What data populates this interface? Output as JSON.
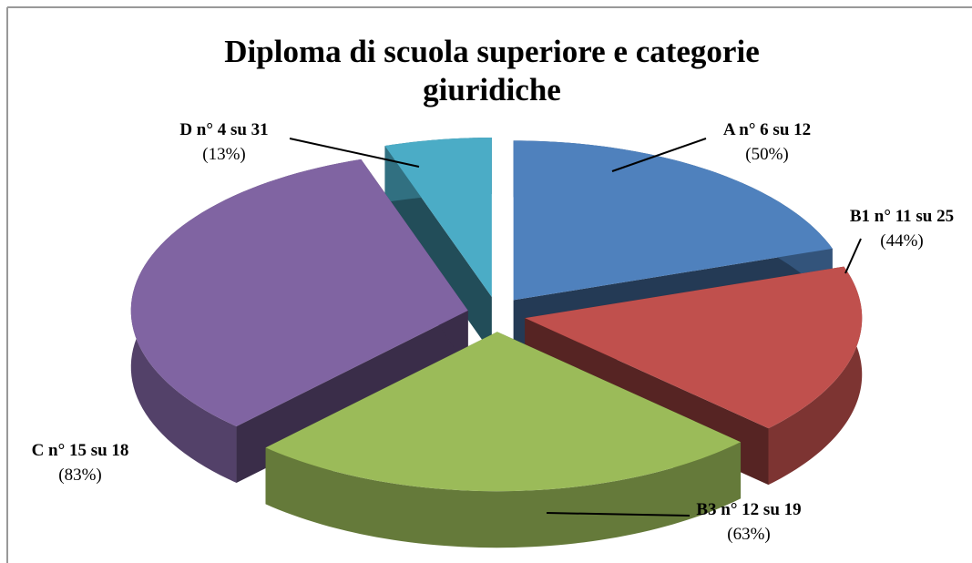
{
  "chart_data": {
    "type": "pie3d",
    "title": "Diploma di scuola superiore e categorie giuridiche",
    "categories": [
      "A n° 6 su 12",
      "B1 n° 11 su 25",
      "B3 n° 12 su 19",
      "C n° 15 su 18",
      "D n° 4 su 31"
    ],
    "values": [
      50,
      44,
      63,
      83,
      13
    ],
    "value_labels": [
      "(50%)",
      "(44%)",
      "(63%)",
      "(83%)",
      "(13%)"
    ],
    "colors": [
      "#4f81bd",
      "#c0504d",
      "#9bbb59",
      "#8064a2",
      "#4bacc6"
    ]
  }
}
